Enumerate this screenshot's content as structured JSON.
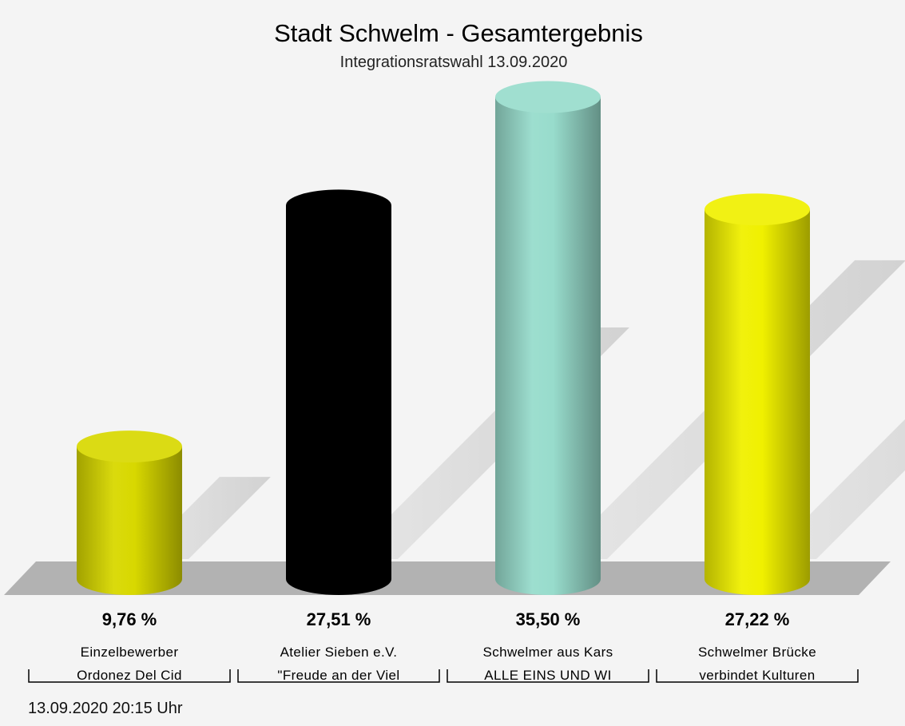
{
  "chart_data": {
    "type": "bar",
    "title": "Stadt Schwelm - Gesamtergebnis",
    "subtitle": "Integrationsratswahl 13.09.2020",
    "ylim": [
      0,
      40
    ],
    "series": [
      {
        "value": 9.76,
        "value_label": "9,76 %",
        "label_line1": "Einzelbewerber",
        "label_line2": "Ordonez Del Cid",
        "color": "#d8d800"
      },
      {
        "value": 27.51,
        "value_label": "27,51 %",
        "label_line1": "Atelier Sieben e.V.",
        "label_line2": "\"Freude an der Viel",
        "color": "#000000"
      },
      {
        "value": 35.5,
        "value_label": "35,50 %",
        "label_line1": "Schwelmer aus Kars",
        "label_line2": "ALLE EINS UND WI",
        "color": "#98dccc"
      },
      {
        "value": 27.22,
        "value_label": "27,22 %",
        "label_line1": "Schwelmer Brücke",
        "label_line2": "verbindet Kulturen",
        "color": "#f0f000"
      }
    ]
  },
  "timestamp": "13.09.2020 20:15 Uhr"
}
